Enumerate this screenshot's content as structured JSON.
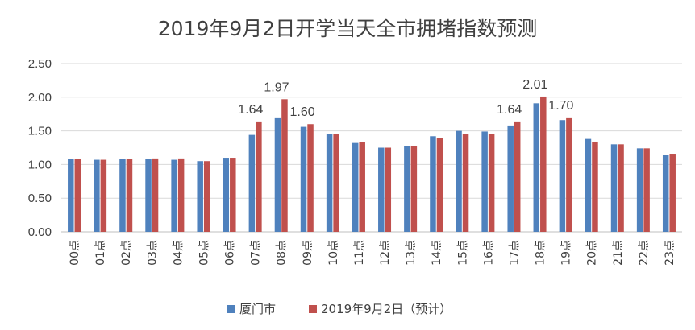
{
  "chart_data": {
    "type": "bar",
    "title": "2019年9月2日开学当天全市拥堵指数预测",
    "xlabel": "",
    "ylabel": "",
    "ylim": [
      0,
      2.5
    ],
    "yticks": [
      "0.00",
      "0.50",
      "1.00",
      "1.50",
      "2.00",
      "2.50"
    ],
    "grid": true,
    "legend_position": "bottom",
    "categories": [
      "00点",
      "01点",
      "02点",
      "03点",
      "04点",
      "05点",
      "06点",
      "07点",
      "08点",
      "09点",
      "10点",
      "11点",
      "12点",
      "13点",
      "14点",
      "15点",
      "16点",
      "17点",
      "18点",
      "19点",
      "20点",
      "21点",
      "22点",
      "23点"
    ],
    "series": [
      {
        "name": "厦门市",
        "color": "#4F81BD",
        "values": [
          1.08,
          1.07,
          1.08,
          1.08,
          1.07,
          1.05,
          1.1,
          1.44,
          1.7,
          1.56,
          1.45,
          1.32,
          1.25,
          1.27,
          1.42,
          1.5,
          1.49,
          1.58,
          1.91,
          1.66,
          1.38,
          1.3,
          1.24,
          1.14
        ]
      },
      {
        "name": "2019年9月2日（预计）",
        "color": "#C0504D",
        "values": [
          1.08,
          1.07,
          1.08,
          1.09,
          1.09,
          1.05,
          1.1,
          1.64,
          1.97,
          1.6,
          1.45,
          1.33,
          1.25,
          1.28,
          1.39,
          1.45,
          1.45,
          1.64,
          2.01,
          1.7,
          1.34,
          1.3,
          1.24,
          1.16
        ]
      }
    ],
    "data_labels": [
      {
        "series": 1,
        "index": 7,
        "text": "1.64"
      },
      {
        "series": 1,
        "index": 8,
        "text": "1.97"
      },
      {
        "series": 1,
        "index": 9,
        "text": "1.60"
      },
      {
        "series": 1,
        "index": 17,
        "text": "1.64"
      },
      {
        "series": 1,
        "index": 18,
        "text": "2.01"
      },
      {
        "series": 1,
        "index": 19,
        "text": "1.70"
      }
    ]
  }
}
